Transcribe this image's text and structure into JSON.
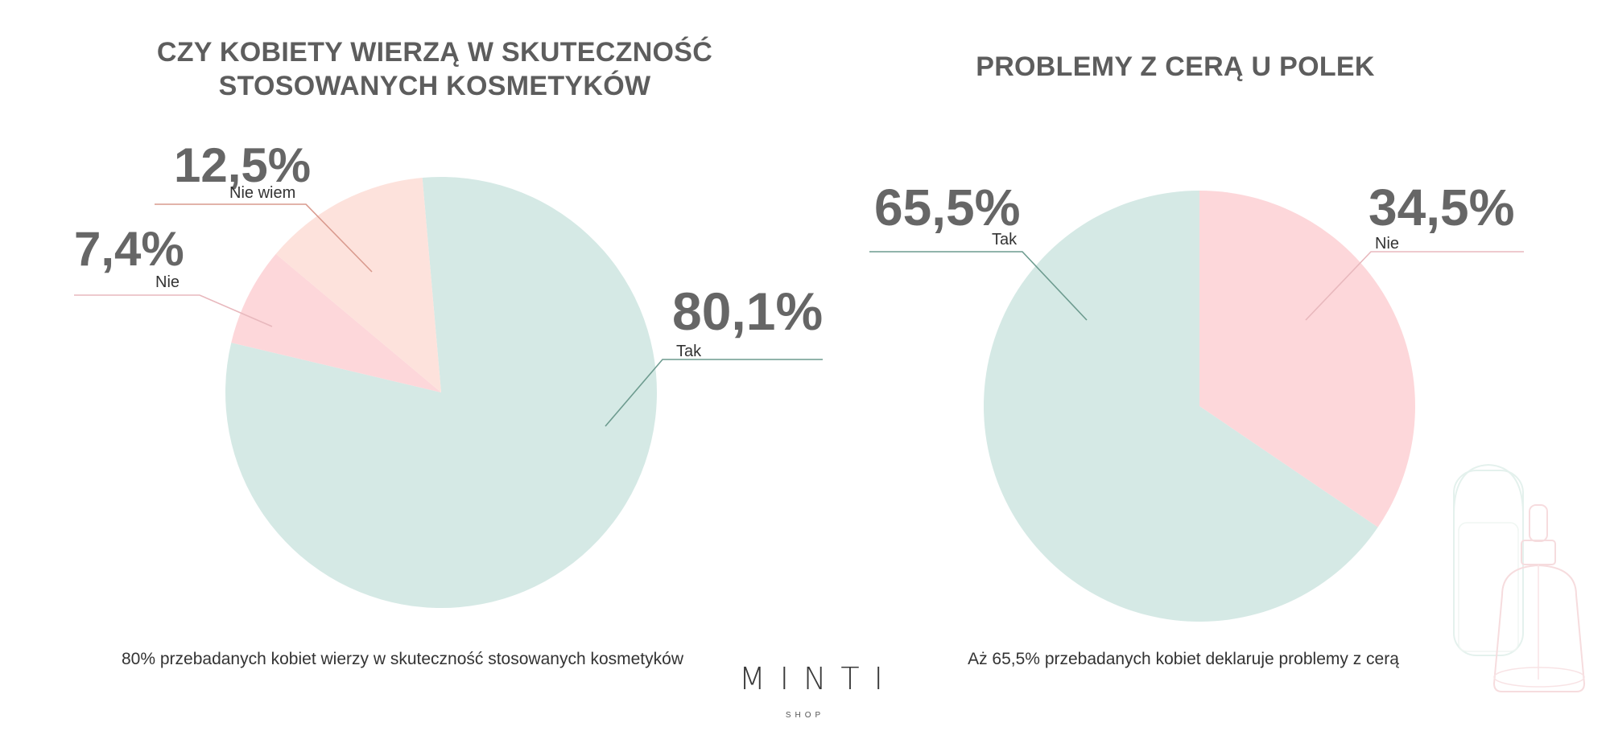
{
  "chart_data": [
    {
      "type": "pie",
      "title": "CZY KOBIETY WIERZĄ W SKUTECZNOŚĆ STOSOWANYCH KOSMETYKÓW",
      "caption": "80% przebadanych kobiet wierzy w skuteczność stosowanych kosmetyków",
      "slices": [
        {
          "label": "Tak",
          "value_label": "80,1%",
          "value": 80.1,
          "color": "#d5e9e5",
          "line_color": "#6d9b8f"
        },
        {
          "label": "Nie",
          "value_label": "7,4%",
          "value": 7.4,
          "color": "#fdd7da",
          "line_color": "#e8b8bd"
        },
        {
          "label": "Nie wiem",
          "value_label": "12,5%",
          "value": 12.5,
          "color": "#fde2dc",
          "line_color": "#d99a8e"
        }
      ]
    },
    {
      "type": "pie",
      "title": "PROBLEMY Z CERĄ U POLEK",
      "caption": "Aż 65,5% przebadanych kobiet deklaruje problemy z cerą",
      "slices": [
        {
          "label": "Nie",
          "value_label": "34,5%",
          "value": 34.5,
          "color": "#fdd7da",
          "line_color": "#e8b8bd"
        },
        {
          "label": "Tak",
          "value_label": "65,5%",
          "value": 65.5,
          "color": "#d5e9e5",
          "line_color": "#6d9b8f"
        }
      ]
    }
  ],
  "brand": {
    "name": "MINTI",
    "sub": "SHOP"
  }
}
